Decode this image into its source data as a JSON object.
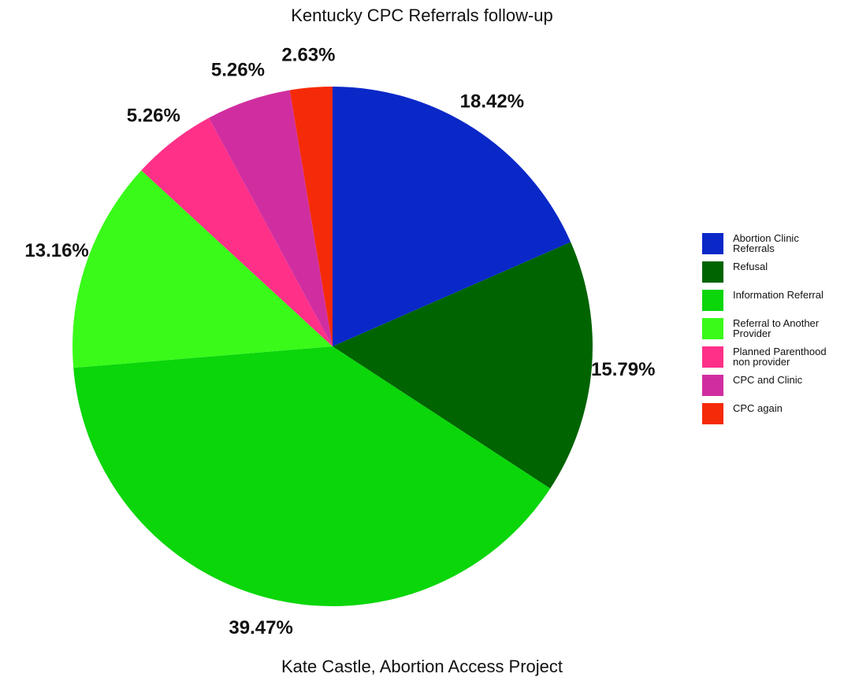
{
  "chart_data": {
    "type": "pie",
    "title": "Kentucky CPC Referrals follow-up",
    "caption": "Kate Castle, Abortion Access Project",
    "legend_position": "right",
    "slices": [
      {
        "label": "Abortion Clinic Referrals",
        "value": 18.42,
        "display": "18.42%",
        "color": "#0a28c8"
      },
      {
        "label": "Refusal",
        "value": 15.79,
        "display": "15.79%",
        "color": "#006400"
      },
      {
        "label": "Information Referral",
        "value": 39.47,
        "display": "39.47%",
        "color": "#0ad60a"
      },
      {
        "label": "Referral to Another Provider",
        "value": 13.16,
        "display": "13.16%",
        "color": "#3afa1a"
      },
      {
        "label": "Planned Parenthood non provider",
        "value": 5.26,
        "display": "5.26%",
        "color": "#ff3088"
      },
      {
        "label": "CPC and Clinic",
        "value": 5.26,
        "display": "5.26%",
        "color": "#d02ea0"
      },
      {
        "label": "CPC again",
        "value": 2.63,
        "display": "2.63%",
        "color": "#f52a08"
      }
    ]
  }
}
